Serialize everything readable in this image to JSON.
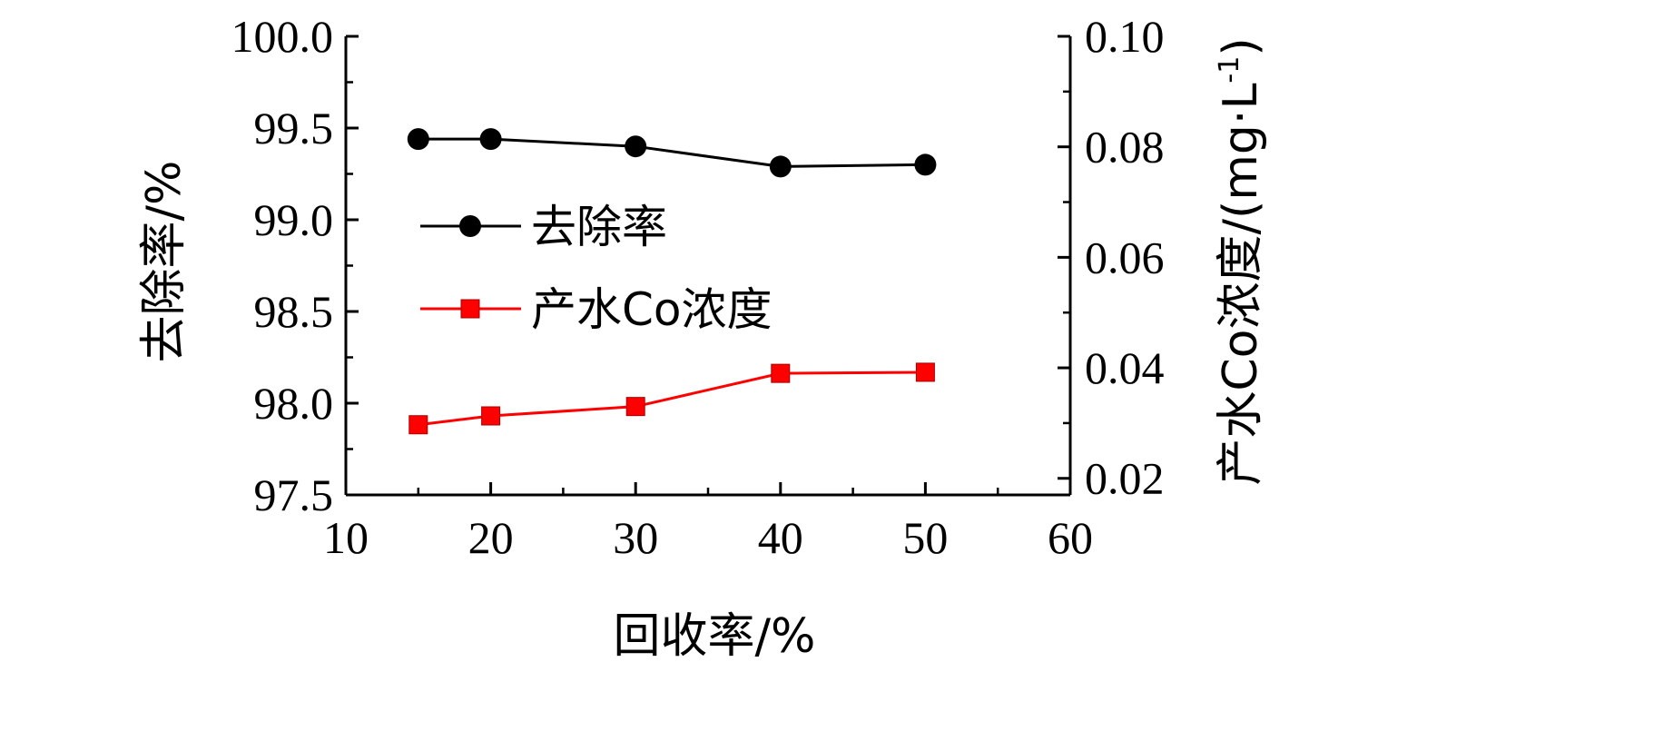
{
  "chart_data": {
    "type": "line",
    "xlabel": "回收率/%",
    "ylabel_left": "去除率/%",
    "ylabel_right": "产水Co浓度/(mg·L",
    "ylabel_right_sup": "-1",
    "ylabel_right_close": ")",
    "xlim": [
      10,
      60
    ],
    "ylim_left": [
      97.5,
      100.0
    ],
    "ylim_right": [
      0.017,
      0.1
    ],
    "x_ticks": [
      "10",
      "20",
      "30",
      "40",
      "50",
      "60"
    ],
    "y_left_ticks": [
      "97.5",
      "98.0",
      "98.5",
      "99.0",
      "99.5",
      "100.0"
    ],
    "y_right_ticks": [
      "0.02",
      "0.04",
      "0.06",
      "0.08",
      "0.10"
    ],
    "grid": false,
    "legend_position": "left",
    "series": [
      {
        "name": "去除率",
        "axis": "left",
        "color": "#000000",
        "marker": "circle",
        "x": [
          15,
          20,
          30,
          40,
          50
        ],
        "y": [
          99.44,
          99.44,
          99.4,
          99.29,
          99.3
        ]
      },
      {
        "name": "产水Co浓度",
        "axis": "right",
        "color": "#ff0000",
        "marker": "square",
        "x": [
          15,
          20,
          30,
          40,
          50
        ],
        "y": [
          0.0297,
          0.0313,
          0.033,
          0.039,
          0.0392
        ]
      }
    ]
  }
}
